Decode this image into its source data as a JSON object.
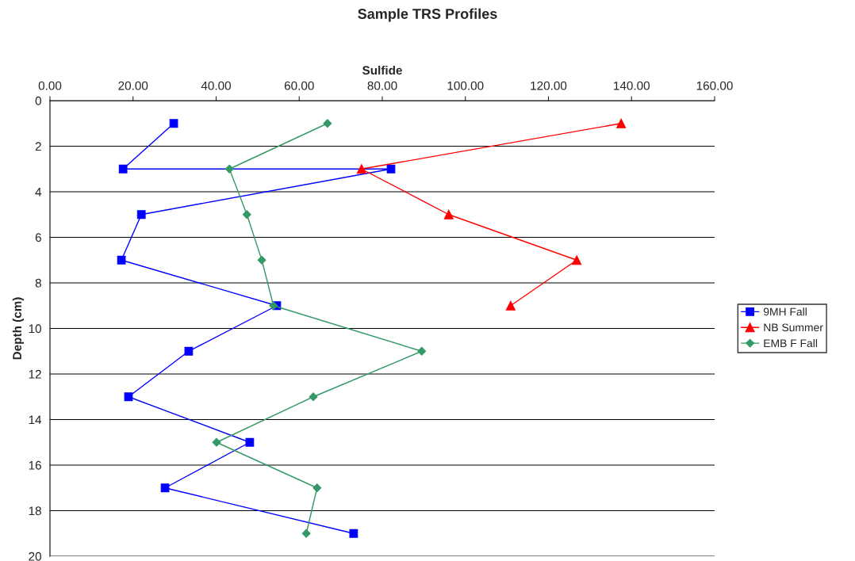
{
  "chart_data": {
    "type": "line",
    "title": "Sample TRS Profiles",
    "xlabel": "Sulfide",
    "ylabel": "Depth (cm)",
    "xlim": [
      0,
      160
    ],
    "xticks": [
      {
        "value": 0,
        "label": "0.00"
      },
      {
        "value": 20,
        "label": "20.00"
      },
      {
        "value": 40,
        "label": "40.00"
      },
      {
        "value": 60,
        "label": "60.00"
      },
      {
        "value": 80,
        "label": "80.00"
      },
      {
        "value": 100,
        "label": "100.00"
      },
      {
        "value": 120,
        "label": "120.00"
      },
      {
        "value": 140,
        "label": "140.00"
      },
      {
        "value": 160,
        "label": "160.00"
      }
    ],
    "ylim": [
      20,
      0
    ],
    "yticks": [
      0,
      2,
      4,
      6,
      8,
      10,
      12,
      14,
      16,
      18,
      20
    ],
    "grid": "y",
    "legend": "right",
    "series": [
      {
        "name": "9MH Fall",
        "color": "#0000ff",
        "marker": "square",
        "x": [
          29.8,
          17.6,
          82.1,
          22.0,
          17.2,
          54.6,
          33.4,
          18.9,
          48.1,
          27.7,
          73.1
        ],
        "values": [
          1,
          3,
          3,
          5,
          7,
          9,
          11,
          13,
          15,
          17,
          19
        ]
      },
      {
        "name": "NB Summer",
        "color": "#ff0000",
        "marker": "triangle",
        "x": [
          137.5,
          75.0,
          96.0,
          126.8,
          110.9
        ],
        "values": [
          1,
          3,
          5,
          7,
          9
        ]
      },
      {
        "name": "EMB F Fall",
        "color": "#339966",
        "marker": "diamond",
        "x": [
          66.8,
          43.2,
          47.4,
          51.0,
          53.8,
          89.5,
          63.4,
          40.1,
          64.3,
          61.7
        ],
        "values": [
          1,
          3,
          5,
          7,
          9,
          11,
          13,
          15,
          17,
          19
        ]
      }
    ]
  }
}
